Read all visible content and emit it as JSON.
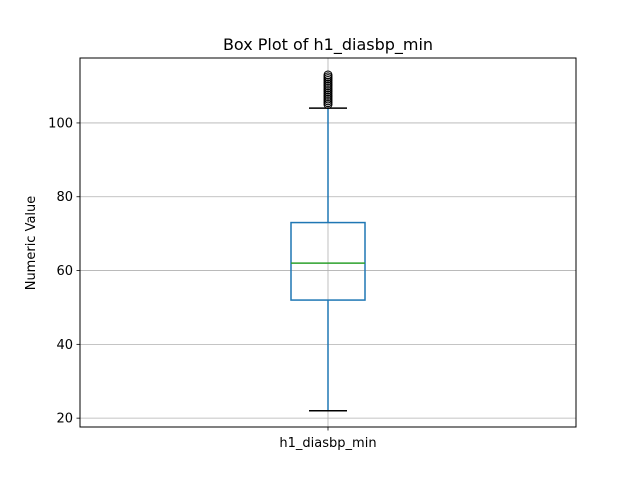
{
  "chart_data": {
    "type": "box",
    "title": "Box Plot of h1_diasbp_min",
    "xlabel": "",
    "ylabel": "Numeric Value",
    "categories": [
      "h1_diasbp_min"
    ],
    "ylim": [
      17.6,
      117.6
    ],
    "yticks": [
      20,
      40,
      60,
      80,
      100
    ],
    "grid": true,
    "series": [
      {
        "name": "h1_diasbp_min",
        "whisker_low": 22,
        "q1": 52,
        "median": 62,
        "q3": 73,
        "whisker_high": 104,
        "outliers": [
          105,
          105.5,
          106,
          106.5,
          107,
          107.5,
          108,
          108.5,
          109,
          109.5,
          110,
          110.5,
          111,
          111.5,
          112,
          112.5,
          113
        ]
      }
    ]
  },
  "colors": {
    "box": "#1f77b4",
    "median": "#2ca02c",
    "whisker_cap": "#000000",
    "outlier_edge": "#000000",
    "grid": "#b0b0b0",
    "frame": "#000000"
  }
}
